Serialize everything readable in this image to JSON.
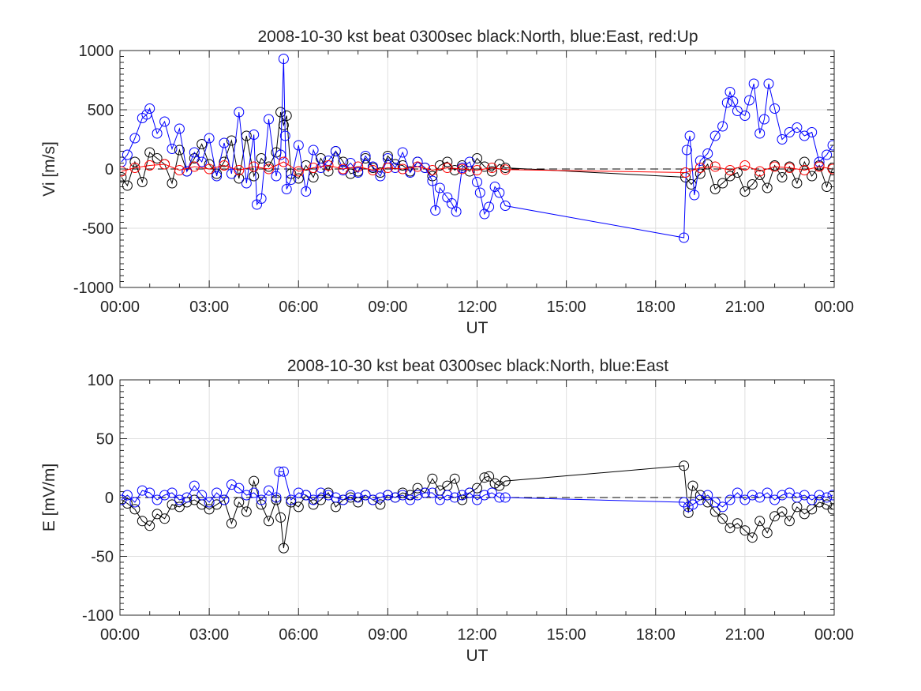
{
  "chart_data": [
    {
      "type": "line",
      "title": "2008-10-30 kst beat 0300sec black:North, blue:East, red:Up",
      "xlabel": "UT",
      "ylabel": "Vi [m/s]",
      "xlim": [
        0,
        24
      ],
      "ylim": [
        -1000,
        1000
      ],
      "xticks": [
        0,
        3,
        6,
        9,
        12,
        15,
        18,
        21,
        24
      ],
      "xtick_labels": [
        "00:00",
        "03:00",
        "06:00",
        "09:00",
        "12:00",
        "15:00",
        "18:00",
        "21:00",
        "00:00"
      ],
      "yticks": [
        -1000,
        -500,
        0,
        500,
        1000
      ],
      "ytick_labels": [
        "-1000",
        "-500",
        "0",
        "500",
        "1000"
      ],
      "grid": true,
      "reference_line": {
        "y": 0,
        "style": "dashed",
        "color": "#000000"
      },
      "series": [
        {
          "name": "North",
          "color": "#000000",
          "marker": "circle",
          "x": [
            0.05,
            0.25,
            0.5,
            0.75,
            1.0,
            1.25,
            1.5,
            1.75,
            2.0,
            2.25,
            2.5,
            2.75,
            3.0,
            3.25,
            3.5,
            3.75,
            4.0,
            4.25,
            4.5,
            4.75,
            5.0,
            5.25,
            5.4,
            5.5,
            5.6,
            5.75,
            6.0,
            6.25,
            6.5,
            6.75,
            7.0,
            7.25,
            7.5,
            7.75,
            8.0,
            8.25,
            8.5,
            8.75,
            9.0,
            9.25,
            9.5,
            9.75,
            10.0,
            10.25,
            10.5,
            10.75,
            11.0,
            11.25,
            11.5,
            11.75,
            12.0,
            12.25,
            12.5,
            12.75,
            12.95,
            19.0,
            19.2,
            19.5,
            19.75,
            20.0,
            20.25,
            20.5,
            20.75,
            21.0,
            21.25,
            21.5,
            21.75,
            22.0,
            22.25,
            22.5,
            22.75,
            23.0,
            23.25,
            23.5,
            23.75,
            23.95
          ],
          "y": [
            -70,
            -140,
            60,
            -110,
            140,
            90,
            40,
            -120,
            160,
            -20,
            90,
            210,
            40,
            -40,
            60,
            240,
            -80,
            280,
            -60,
            90,
            20,
            140,
            480,
            370,
            450,
            -40,
            -80,
            30,
            -70,
            90,
            -20,
            150,
            60,
            -40,
            -20,
            90,
            10,
            -30,
            110,
            40,
            30,
            -20,
            60,
            10,
            -60,
            30,
            60,
            -10,
            30,
            -20,
            90,
            20,
            -20,
            40,
            10,
            -70,
            -130,
            -40,
            40,
            -170,
            -120,
            -60,
            -30,
            -190,
            -130,
            -50,
            -160,
            30,
            -70,
            20,
            -120,
            60,
            -60,
            30,
            -150,
            10
          ]
        },
        {
          "name": "East",
          "color": "#0000ff",
          "marker": "circle",
          "x": [
            0.05,
            0.25,
            0.5,
            0.75,
            0.9,
            1.0,
            1.25,
            1.5,
            1.75,
            2.0,
            2.25,
            2.5,
            2.75,
            3.0,
            3.25,
            3.5,
            3.75,
            4.0,
            4.25,
            4.5,
            4.6,
            4.75,
            5.0,
            5.25,
            5.4,
            5.5,
            5.55,
            5.6,
            5.75,
            6.0,
            6.25,
            6.5,
            6.75,
            7.0,
            7.25,
            7.5,
            7.75,
            8.0,
            8.25,
            8.5,
            8.75,
            9.0,
            9.25,
            9.5,
            9.75,
            10.0,
            10.25,
            10.5,
            10.6,
            10.75,
            11.0,
            11.15,
            11.3,
            11.5,
            11.75,
            12.0,
            12.1,
            12.25,
            12.4,
            12.6,
            12.75,
            12.95,
            18.95,
            19.05,
            19.15,
            19.3,
            19.5,
            19.75,
            20.0,
            20.25,
            20.4,
            20.5,
            20.6,
            20.75,
            21.0,
            21.15,
            21.3,
            21.5,
            21.65,
            21.8,
            22.0,
            22.25,
            22.5,
            22.75,
            23.0,
            23.25,
            23.5,
            23.75,
            23.95
          ],
          "y": [
            60,
            120,
            260,
            430,
            460,
            510,
            300,
            400,
            170,
            340,
            -20,
            140,
            60,
            260,
            -60,
            220,
            -40,
            480,
            -120,
            290,
            -300,
            -250,
            420,
            -60,
            120,
            930,
            280,
            -170,
            -90,
            200,
            -190,
            160,
            10,
            70,
            150,
            -10,
            50,
            -30,
            110,
            20,
            -60,
            90,
            10,
            140,
            -30,
            60,
            10,
            -100,
            -350,
            -160,
            -240,
            -290,
            -360,
            10,
            60,
            -110,
            -200,
            -380,
            -320,
            -150,
            -200,
            -310,
            -580,
            160,
            280,
            -220,
            70,
            130,
            280,
            360,
            560,
            650,
            570,
            490,
            450,
            580,
            720,
            300,
            420,
            720,
            510,
            250,
            310,
            350,
            280,
            310,
            60,
            120,
            200
          ]
        },
        {
          "name": "Up",
          "color": "#ff0000",
          "marker": "circle",
          "x": [
            0.05,
            0.5,
            1.0,
            1.5,
            2.0,
            2.5,
            3.0,
            3.5,
            4.0,
            4.5,
            5.0,
            5.5,
            6.0,
            6.5,
            7.0,
            7.5,
            8.0,
            8.5,
            9.0,
            9.5,
            10.0,
            10.5,
            11.0,
            11.5,
            12.0,
            12.5,
            12.95,
            19.0,
            19.5,
            20.0,
            20.5,
            21.0,
            21.5,
            22.0,
            22.5,
            23.0,
            23.5,
            23.95
          ],
          "y": [
            -20,
            10,
            30,
            40,
            -10,
            20,
            0,
            30,
            -10,
            20,
            0,
            60,
            -20,
            10,
            30,
            0,
            20,
            -10,
            10,
            0,
            20,
            -10,
            10,
            0,
            -10,
            10,
            -5,
            -30,
            10,
            20,
            -10,
            30,
            -20,
            20,
            10,
            -10,
            20,
            0
          ]
        }
      ]
    },
    {
      "type": "line",
      "title": "2008-10-30 kst beat 0300sec black:North, blue:East",
      "xlabel": "UT",
      "ylabel": "E [mV/m]",
      "xlim": [
        0,
        24
      ],
      "ylim": [
        -100,
        100
      ],
      "xticks": [
        0,
        3,
        6,
        9,
        12,
        15,
        18,
        21,
        24
      ],
      "xtick_labels": [
        "00:00",
        "03:00",
        "06:00",
        "09:00",
        "12:00",
        "15:00",
        "18:00",
        "21:00",
        "00:00"
      ],
      "yticks": [
        -100,
        -50,
        0,
        50,
        100
      ],
      "ytick_labels": [
        "-100",
        "-50",
        "0",
        "50",
        "100"
      ],
      "grid": true,
      "reference_line": {
        "y": 0,
        "style": "dashed",
        "color": "#000000"
      },
      "series": [
        {
          "name": "North",
          "color": "#000000",
          "marker": "circle",
          "x": [
            0.05,
            0.25,
            0.5,
            0.75,
            1.0,
            1.25,
            1.5,
            1.75,
            2.0,
            2.25,
            2.5,
            2.75,
            3.0,
            3.25,
            3.5,
            3.75,
            4.0,
            4.25,
            4.5,
            4.75,
            5.0,
            5.25,
            5.4,
            5.5,
            5.75,
            6.0,
            6.25,
            6.5,
            6.75,
            7.0,
            7.25,
            7.5,
            7.75,
            8.0,
            8.25,
            8.5,
            8.75,
            9.0,
            9.25,
            9.5,
            9.75,
            10.0,
            10.25,
            10.5,
            10.75,
            11.0,
            11.25,
            11.5,
            11.75,
            12.0,
            12.25,
            12.4,
            12.6,
            12.75,
            12.95,
            18.95,
            19.1,
            19.25,
            19.5,
            19.75,
            20.0,
            20.25,
            20.5,
            20.75,
            21.0,
            21.25,
            21.5,
            21.75,
            22.0,
            22.25,
            22.5,
            22.75,
            23.0,
            23.25,
            23.5,
            23.75,
            23.95
          ],
          "y": [
            -2,
            -5,
            -10,
            -20,
            -24,
            -14,
            -18,
            -6,
            -8,
            -4,
            -2,
            -6,
            -10,
            -6,
            -2,
            -22,
            -4,
            -12,
            14,
            -6,
            -20,
            -2,
            -17,
            -43,
            -4,
            -8,
            2,
            -6,
            -2,
            4,
            -8,
            -2,
            0,
            -4,
            2,
            -2,
            -6,
            2,
            0,
            4,
            2,
            8,
            4,
            16,
            6,
            10,
            16,
            -2,
            4,
            8,
            17,
            18,
            12,
            10,
            14,
            27,
            -13,
            10,
            2,
            -4,
            -12,
            -18,
            -26,
            -22,
            -28,
            -34,
            -20,
            -30,
            -16,
            -12,
            -20,
            -8,
            -14,
            -10,
            -4,
            -6,
            -10
          ]
        },
        {
          "name": "East",
          "color": "#0000ff",
          "marker": "circle",
          "x": [
            0.05,
            0.25,
            0.5,
            0.75,
            1.0,
            1.25,
            1.5,
            1.75,
            2.0,
            2.25,
            2.5,
            2.75,
            3.0,
            3.25,
            3.5,
            3.75,
            4.0,
            4.25,
            4.5,
            4.75,
            5.0,
            5.25,
            5.35,
            5.5,
            5.75,
            6.0,
            6.25,
            6.5,
            6.75,
            7.0,
            7.25,
            7.5,
            7.75,
            8.0,
            8.25,
            8.5,
            8.75,
            9.0,
            9.25,
            9.5,
            9.75,
            10.0,
            10.25,
            10.5,
            10.75,
            11.0,
            11.25,
            11.5,
            11.75,
            12.0,
            12.25,
            12.5,
            12.75,
            12.95,
            18.95,
            19.1,
            19.25,
            19.5,
            19.75,
            20.0,
            20.25,
            20.5,
            20.75,
            21.0,
            21.25,
            21.5,
            21.75,
            22.0,
            22.25,
            22.5,
            22.75,
            23.0,
            23.25,
            23.5,
            23.75,
            23.95
          ],
          "y": [
            -2,
            2,
            -4,
            6,
            4,
            -2,
            2,
            4,
            -2,
            0,
            10,
            2,
            -4,
            4,
            -2,
            11,
            8,
            2,
            4,
            -2,
            6,
            0,
            22,
            22,
            -2,
            4,
            2,
            -2,
            4,
            2,
            0,
            -2,
            2,
            0,
            2,
            -2,
            0,
            2,
            0,
            2,
            -2,
            2,
            4,
            4,
            -2,
            2,
            0,
            2,
            4,
            -2,
            2,
            4,
            0,
            0,
            -4,
            -8,
            -6,
            -2,
            2,
            -4,
            -8,
            -2,
            4,
            -2,
            2,
            0,
            4,
            -2,
            2,
            4,
            0,
            2,
            -2,
            2,
            0,
            2
          ]
        }
      ]
    }
  ]
}
